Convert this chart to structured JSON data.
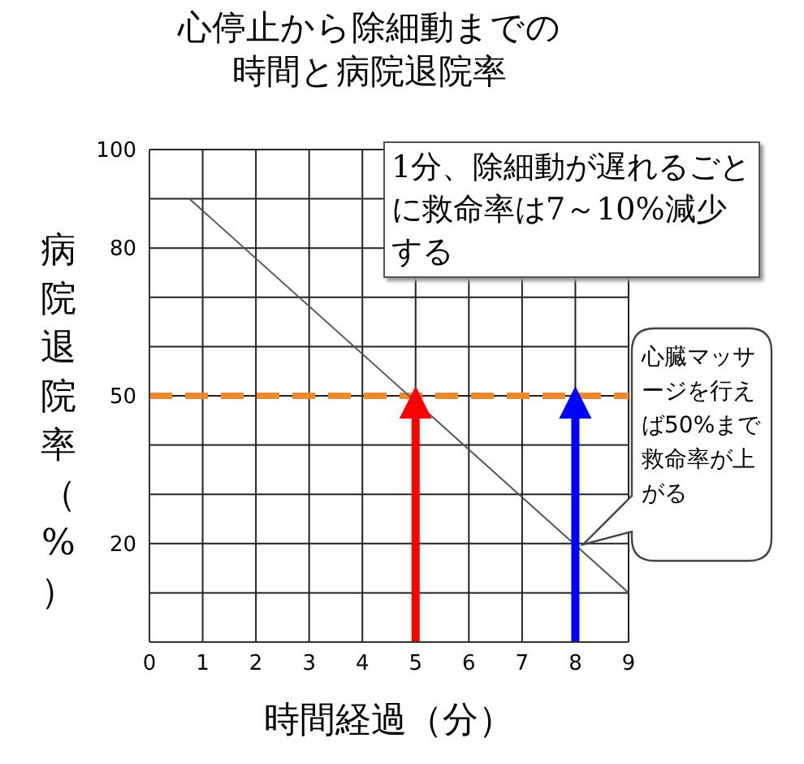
{
  "chart_data": {
    "type": "line",
    "title": "心停止から除細動までの時間と病院退院率",
    "xlabel": "時間経過（分）",
    "ylabel": "病院退院率（%）",
    "xlim": [
      0,
      9
    ],
    "xticks": [
      0,
      1,
      2,
      3,
      4,
      5,
      6,
      7,
      8,
      9
    ],
    "ylim": [
      0,
      100
    ],
    "yticks": [
      {
        "value": 0,
        "label": null
      },
      {
        "value": 10,
        "label": null
      },
      20,
      {
        "value": 30,
        "label": null
      },
      {
        "value": 40,
        "label": null
      },
      50,
      {
        "value": 60,
        "label": null
      },
      {
        "value": 70,
        "label": null
      },
      80,
      {
        "value": 90,
        "label": null
      },
      100
    ],
    "grid": true,
    "marker": "none",
    "series": [
      {
        "x": [
          0.75,
          9
        ],
        "values": [
          90,
          10
        ],
        "color": "#555555"
      },
      {
        "x": [
          5,
          5
        ],
        "values": [
          0,
          50
        ],
        "color": "#ff0000"
      },
      {
        "x": [
          8,
          8
        ],
        "values": [
          0,
          50
        ],
        "color": "#0000ff"
      }
    ],
    "ref_lines": [
      {
        "axis": "y",
        "value": 50,
        "color": "#ed8a2f",
        "line_style": "dashed"
      }
    ],
    "annotations": [
      "1分、除細動が遅れるごとに救命率は7～10%減少する",
      "心臓マッサージを行えば50%まで救命率が上がる"
    ]
  }
}
